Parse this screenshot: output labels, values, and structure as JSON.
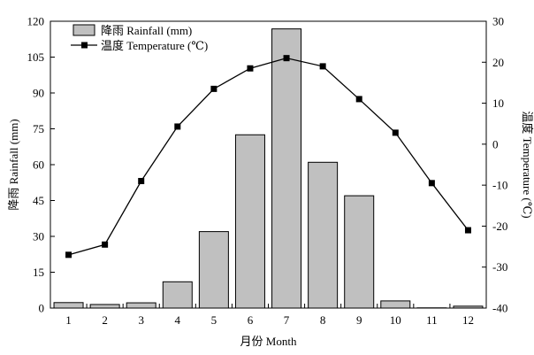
{
  "chart_data": {
    "type": "bar+line",
    "categories": [
      "1",
      "2",
      "3",
      "4",
      "5",
      "6",
      "7",
      "8",
      "9",
      "10",
      "11",
      "12"
    ],
    "xlabel": "月份 Month",
    "series": [
      {
        "name": "降雨 Rainfall (mm)",
        "type": "bar",
        "axis": "left",
        "values": [
          2.3,
          1.5,
          2.2,
          11.0,
          32.0,
          72.5,
          116.8,
          61.0,
          47.0,
          3.0,
          0.1,
          0.8
        ]
      },
      {
        "name": "温度 Temperature (℃)",
        "type": "line",
        "axis": "right",
        "values": [
          -27.0,
          -24.5,
          -9.0,
          4.3,
          13.5,
          18.5,
          21.0,
          19.0,
          11.0,
          2.8,
          -9.5,
          -21.0
        ]
      }
    ],
    "y_left": {
      "label": "降雨 Rainfall (mm)",
      "ylim": [
        0,
        120
      ],
      "ticks": [
        0,
        15,
        30,
        45,
        60,
        75,
        90,
        105,
        120
      ]
    },
    "y_right": {
      "label": "温度 Temperature (℃)",
      "ylim": [
        -40,
        30
      ],
      "ticks": [
        -40,
        -30,
        -20,
        -10,
        0,
        10,
        20,
        30
      ]
    },
    "legend": {
      "placement": "top-left",
      "entries": [
        "降雨 Rainfall (mm)",
        "温度 Temperature (℃)"
      ]
    },
    "grid": false,
    "colors": {
      "bar_fill": "#c0c0c0",
      "bar_stroke": "#000000",
      "line": "#000000",
      "marker": "#000000"
    }
  }
}
